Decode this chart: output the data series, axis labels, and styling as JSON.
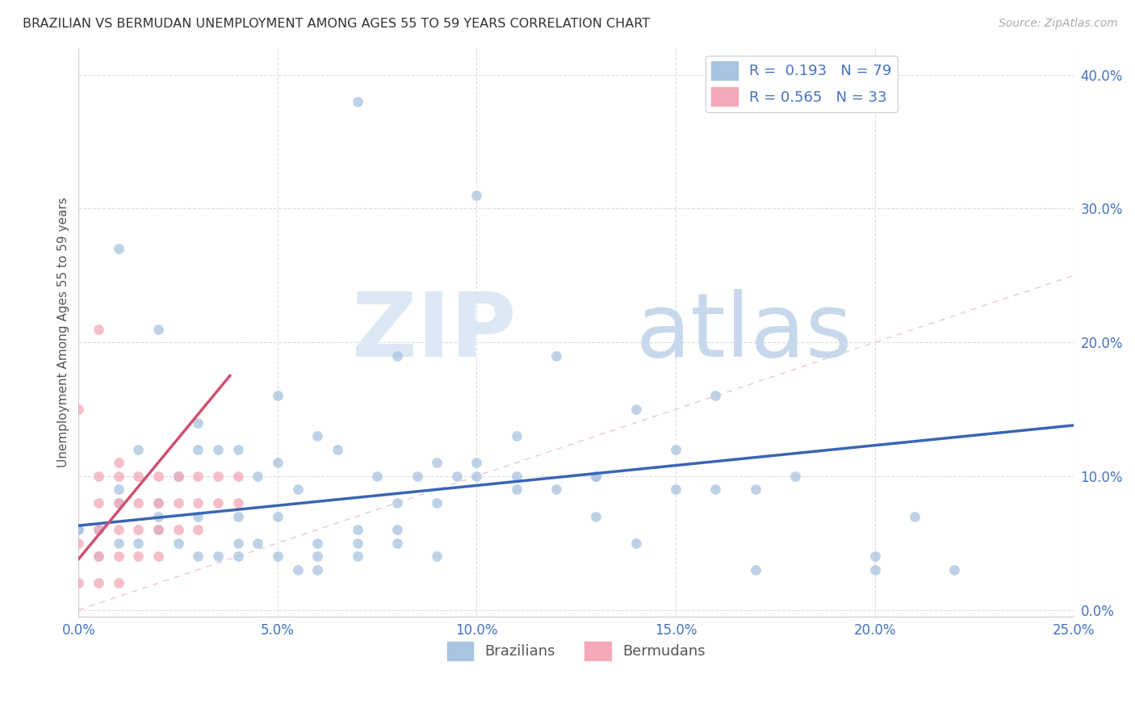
{
  "title": "BRAZILIAN VS BERMUDAN UNEMPLOYMENT AMONG AGES 55 TO 59 YEARS CORRELATION CHART",
  "source": "Source: ZipAtlas.com",
  "ylabel_label": "Unemployment Among Ages 55 to 59 years",
  "xlim": [
    0.0,
    0.25
  ],
  "ylim": [
    -0.005,
    0.42
  ],
  "legend_label_blue": "Brazilians",
  "legend_label_pink": "Bermudans",
  "blue_scatter_color": "#a8c4e0",
  "pink_scatter_color": "#f4a8b8",
  "blue_line_color": "#3a65b5",
  "pink_line_color": "#d05070",
  "diag_line_color": "#e8c0c8",
  "scatter_size": 85,
  "blue_points_x": [
    0.0,
    0.01,
    0.015,
    0.02,
    0.025,
    0.03,
    0.035,
    0.04,
    0.045,
    0.05,
    0.055,
    0.06,
    0.065,
    0.07,
    0.075,
    0.08,
    0.085,
    0.09,
    0.095,
    0.1,
    0.11,
    0.12,
    0.13,
    0.14,
    0.15,
    0.16,
    0.17,
    0.18,
    0.0,
    0.005,
    0.01,
    0.015,
    0.02,
    0.025,
    0.03,
    0.035,
    0.04,
    0.045,
    0.05,
    0.055,
    0.06,
    0.07,
    0.08,
    0.09,
    0.1,
    0.11,
    0.12,
    0.13,
    0.14,
    0.005,
    0.01,
    0.02,
    0.03,
    0.04,
    0.05,
    0.06,
    0.07,
    0.08,
    0.01,
    0.02,
    0.03,
    0.04,
    0.05,
    0.1,
    0.15,
    0.2,
    0.22,
    0.16,
    0.06,
    0.07,
    0.08,
    0.09,
    0.11,
    0.13,
    0.17,
    0.21,
    0.2
  ],
  "blue_points_y": [
    0.06,
    0.08,
    0.12,
    0.08,
    0.1,
    0.12,
    0.12,
    0.07,
    0.1,
    0.11,
    0.09,
    0.13,
    0.12,
    0.38,
    0.1,
    0.19,
    0.1,
    0.11,
    0.1,
    0.11,
    0.13,
    0.19,
    0.1,
    0.15,
    0.09,
    0.16,
    0.09,
    0.1,
    0.06,
    0.06,
    0.05,
    0.05,
    0.06,
    0.05,
    0.07,
    0.04,
    0.05,
    0.05,
    0.04,
    0.03,
    0.04,
    0.06,
    0.06,
    0.08,
    0.1,
    0.09,
    0.09,
    0.07,
    0.05,
    0.04,
    0.09,
    0.07,
    0.04,
    0.04,
    0.07,
    0.03,
    0.04,
    0.08,
    0.27,
    0.21,
    0.14,
    0.12,
    0.16,
    0.31,
    0.12,
    0.03,
    0.03,
    0.09,
    0.05,
    0.05,
    0.05,
    0.04,
    0.1,
    0.1,
    0.03,
    0.07,
    0.04
  ],
  "pink_points_x": [
    0.0,
    0.0,
    0.0,
    0.005,
    0.005,
    0.005,
    0.005,
    0.005,
    0.01,
    0.01,
    0.01,
    0.01,
    0.01,
    0.015,
    0.015,
    0.015,
    0.015,
    0.02,
    0.02,
    0.02,
    0.02,
    0.025,
    0.025,
    0.025,
    0.03,
    0.03,
    0.03,
    0.035,
    0.035,
    0.04,
    0.04,
    0.005,
    0.01
  ],
  "pink_points_y": [
    0.15,
    0.05,
    0.02,
    0.1,
    0.08,
    0.06,
    0.04,
    0.02,
    0.1,
    0.08,
    0.06,
    0.04,
    0.02,
    0.1,
    0.08,
    0.06,
    0.04,
    0.1,
    0.08,
    0.06,
    0.04,
    0.1,
    0.08,
    0.06,
    0.1,
    0.08,
    0.06,
    0.1,
    0.08,
    0.1,
    0.08,
    0.21,
    0.11
  ],
  "blue_trend_x": [
    0.0,
    0.25
  ],
  "blue_trend_y": [
    0.063,
    0.138
  ],
  "pink_trend_x": [
    0.0,
    0.038
  ],
  "pink_trend_y": [
    0.038,
    0.175
  ]
}
